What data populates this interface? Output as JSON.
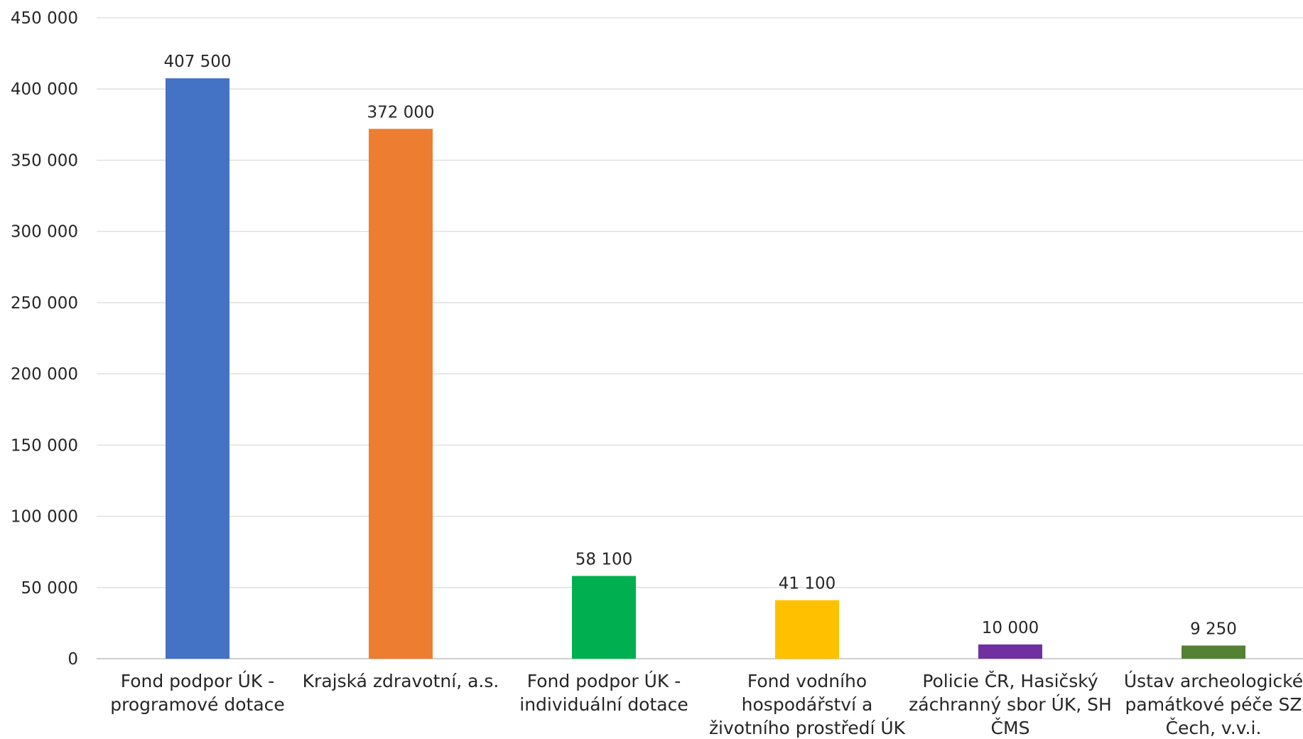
{
  "chart_data": {
    "type": "bar",
    "title": "",
    "xlabel": "",
    "ylabel": "",
    "ylim": [
      0,
      450000
    ],
    "yticks": [
      0,
      50000,
      100000,
      150000,
      200000,
      250000,
      300000,
      350000,
      400000,
      450000
    ],
    "ytick_labels": [
      "0",
      "50 000",
      "100 000",
      "150 000",
      "200 000",
      "250 000",
      "300 000",
      "350 000",
      "400 000",
      "450 000"
    ],
    "grid": true,
    "legend": "none",
    "categories": [
      [
        "Fond podpor ÚK -",
        "programové dotace"
      ],
      [
        "Krajská zdravotní, a.s."
      ],
      [
        "Fond podpor ÚK -",
        "individuální dotace"
      ],
      [
        "Fond vodního",
        "hospodářství a",
        "životního prostředí ÚK"
      ],
      [
        "Policie ČR, Hasičský",
        "záchranný sbor ÚK, SH",
        "ČMS"
      ],
      [
        "Ústav archeologické",
        "památkové péče SZ",
        "Čech, v.v.i."
      ]
    ],
    "values": [
      407500,
      372000,
      58100,
      41100,
      10000,
      9250
    ],
    "value_labels": [
      "407 500",
      "372 000",
      "58 100",
      "41 100",
      "10 000",
      "9 250"
    ],
    "colors": [
      "#4472C4",
      "#ED7D31",
      "#00B050",
      "#FFC000",
      "#7030A0",
      "#548235"
    ]
  }
}
